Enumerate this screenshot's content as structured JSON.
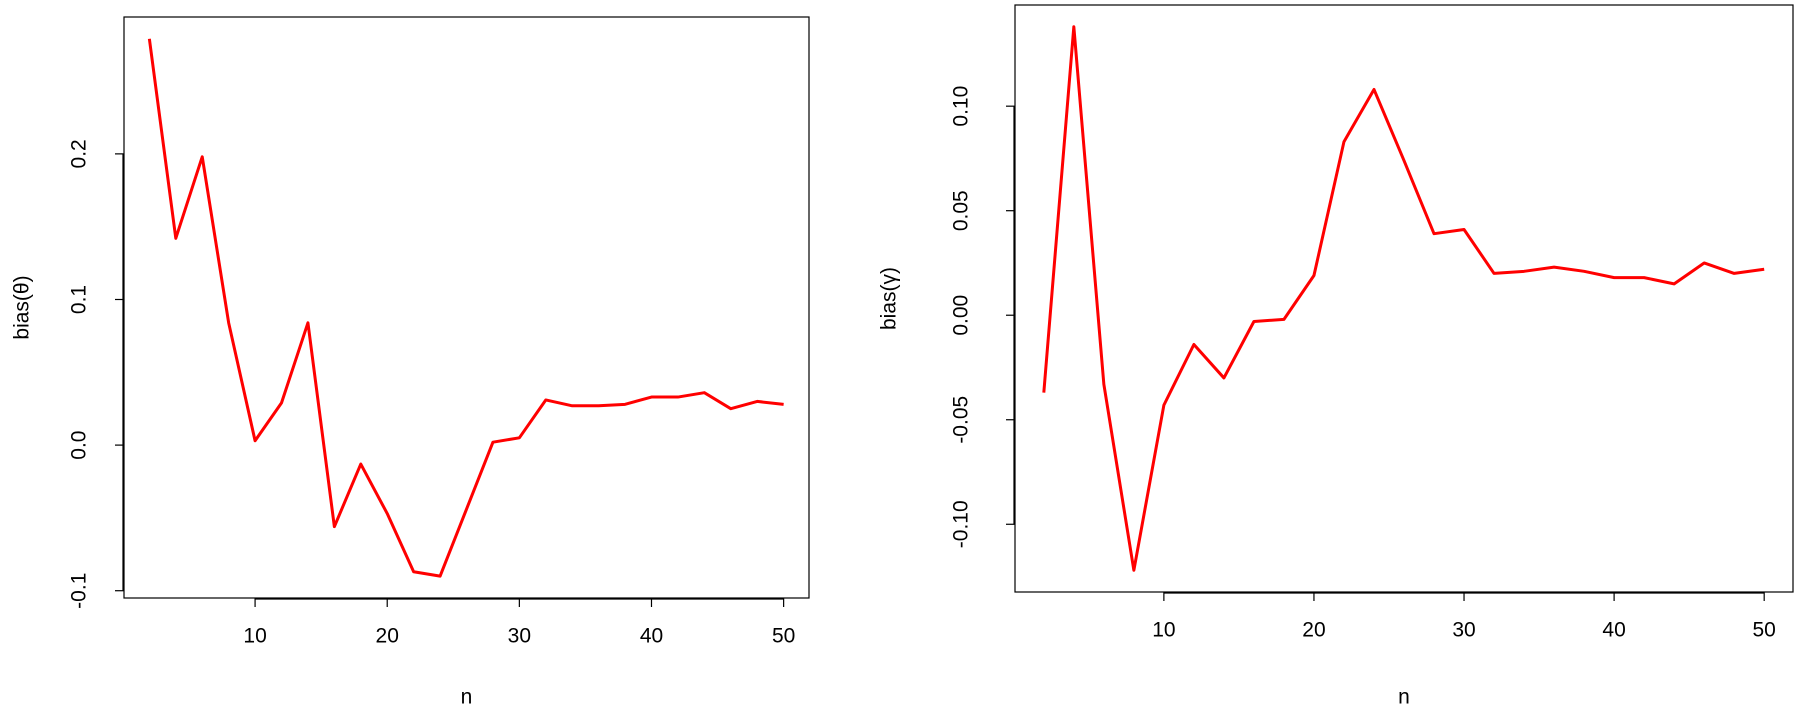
{
  "chart_data": [
    {
      "type": "line",
      "xlabel": "n",
      "ylabel": "bias(θ)",
      "color": "#ff0000",
      "x": [
        2,
        4,
        6,
        8,
        10,
        12,
        14,
        16,
        18,
        20,
        22,
        24,
        26,
        28,
        30,
        32,
        34,
        36,
        38,
        40,
        42,
        44,
        46,
        48,
        50
      ],
      "values": [
        0.279,
        0.142,
        0.198,
        0.084,
        0.003,
        0.029,
        0.084,
        -0.056,
        -0.013,
        -0.047,
        -0.087,
        -0.09,
        -0.044,
        0.002,
        0.005,
        0.031,
        0.027,
        0.027,
        0.028,
        0.033,
        0.033,
        0.036,
        0.025,
        0.03,
        0.028
      ],
      "xlim": [
        0.08,
        51.92
      ],
      "ylim": [
        -0.105,
        0.294
      ],
      "xticks": [
        10,
        20,
        30,
        40,
        50
      ],
      "yticks": [
        -0.1,
        {
          "value": 0,
          "label": "0.0"
        },
        0.1,
        0.2
      ]
    },
    {
      "type": "line",
      "xlabel": "n",
      "ylabel": "bias(γ)",
      "color": "#ff0000",
      "x": [
        2,
        4,
        6,
        8,
        10,
        12,
        14,
        16,
        18,
        20,
        22,
        24,
        26,
        28,
        30,
        32,
        34,
        36,
        38,
        40,
        42,
        44,
        46,
        48,
        50
      ],
      "values": [
        -0.037,
        0.138,
        -0.033,
        -0.122,
        -0.043,
        -0.014,
        -0.03,
        -0.003,
        -0.002,
        0.019,
        0.083,
        0.108,
        0.074,
        0.039,
        0.041,
        0.02,
        0.021,
        0.023,
        0.021,
        0.018,
        0.018,
        0.015,
        0.025,
        0.02,
        0.022
      ],
      "xlim": [
        0.08,
        51.92
      ],
      "ylim": [
        -0.1324,
        0.1484
      ],
      "xticks": [
        10,
        20,
        30,
        40,
        50
      ],
      "yticks": [
        {
          "value": -0.1,
          "label": "-0.10"
        },
        -0.05,
        {
          "value": 0,
          "label": "0.00"
        },
        0.05,
        {
          "value": 0.1,
          "label": "0.10"
        }
      ]
    }
  ]
}
